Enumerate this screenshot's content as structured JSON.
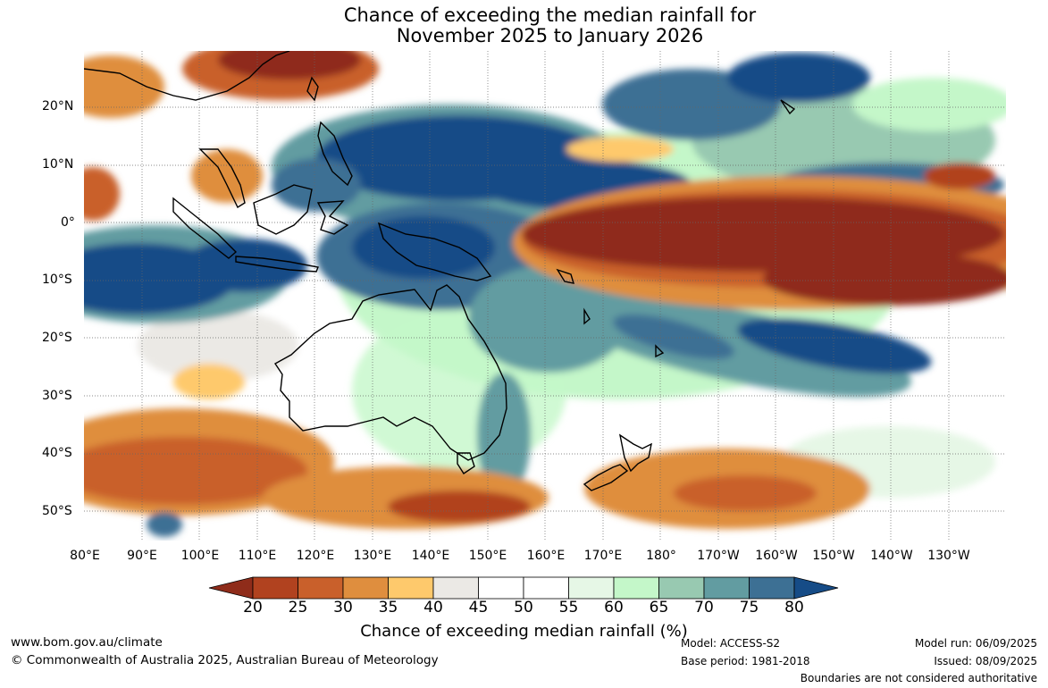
{
  "title": {
    "line1": "Chance of exceeding the median rainfall for",
    "line2": "November 2025 to January 2026"
  },
  "map": {
    "longitude_labels": [
      "80°E",
      "90°E",
      "100°E",
      "110°E",
      "120°E",
      "130°E",
      "140°E",
      "150°E",
      "160°E",
      "170°E",
      "180°",
      "170°W",
      "160°W",
      "150°W",
      "140°W",
      "130°W"
    ],
    "latitude_labels": [
      "20°N",
      "10°N",
      "0°",
      "10°S",
      "20°S",
      "30°S",
      "40°S",
      "50°S"
    ],
    "land_outline_color": "#000000"
  },
  "colorbar": {
    "title": "Chance of exceeding median rainfall (%)",
    "tick_labels": [
      "20",
      "25",
      "30",
      "35",
      "40",
      "45",
      "50",
      "55",
      "60",
      "65",
      "70",
      "75",
      "80"
    ],
    "colors": [
      "#8f2c1a",
      "#b1421f",
      "#c9602b",
      "#df8e3e",
      "#fec96c",
      "#ebe9e5",
      "#ffffff",
      "#ffffff",
      "#e6f7e6",
      "#c4f7c9",
      "#98c9b1",
      "#629ca1",
      "#3d7094",
      "#164c87"
    ]
  },
  "footer": {
    "website": "www.bom.gov.au/climate",
    "copyright": "© Commonwealth of Australia 2025, Australian Bureau of Meteorology",
    "model": "Model: ACCESS-S2",
    "base_period": "Base period: 1981-2018",
    "model_run": "Model run: 06/09/2025",
    "issued": "Issued: 08/09/2025",
    "disclaimer": "Boundaries are not considered authoritative"
  }
}
